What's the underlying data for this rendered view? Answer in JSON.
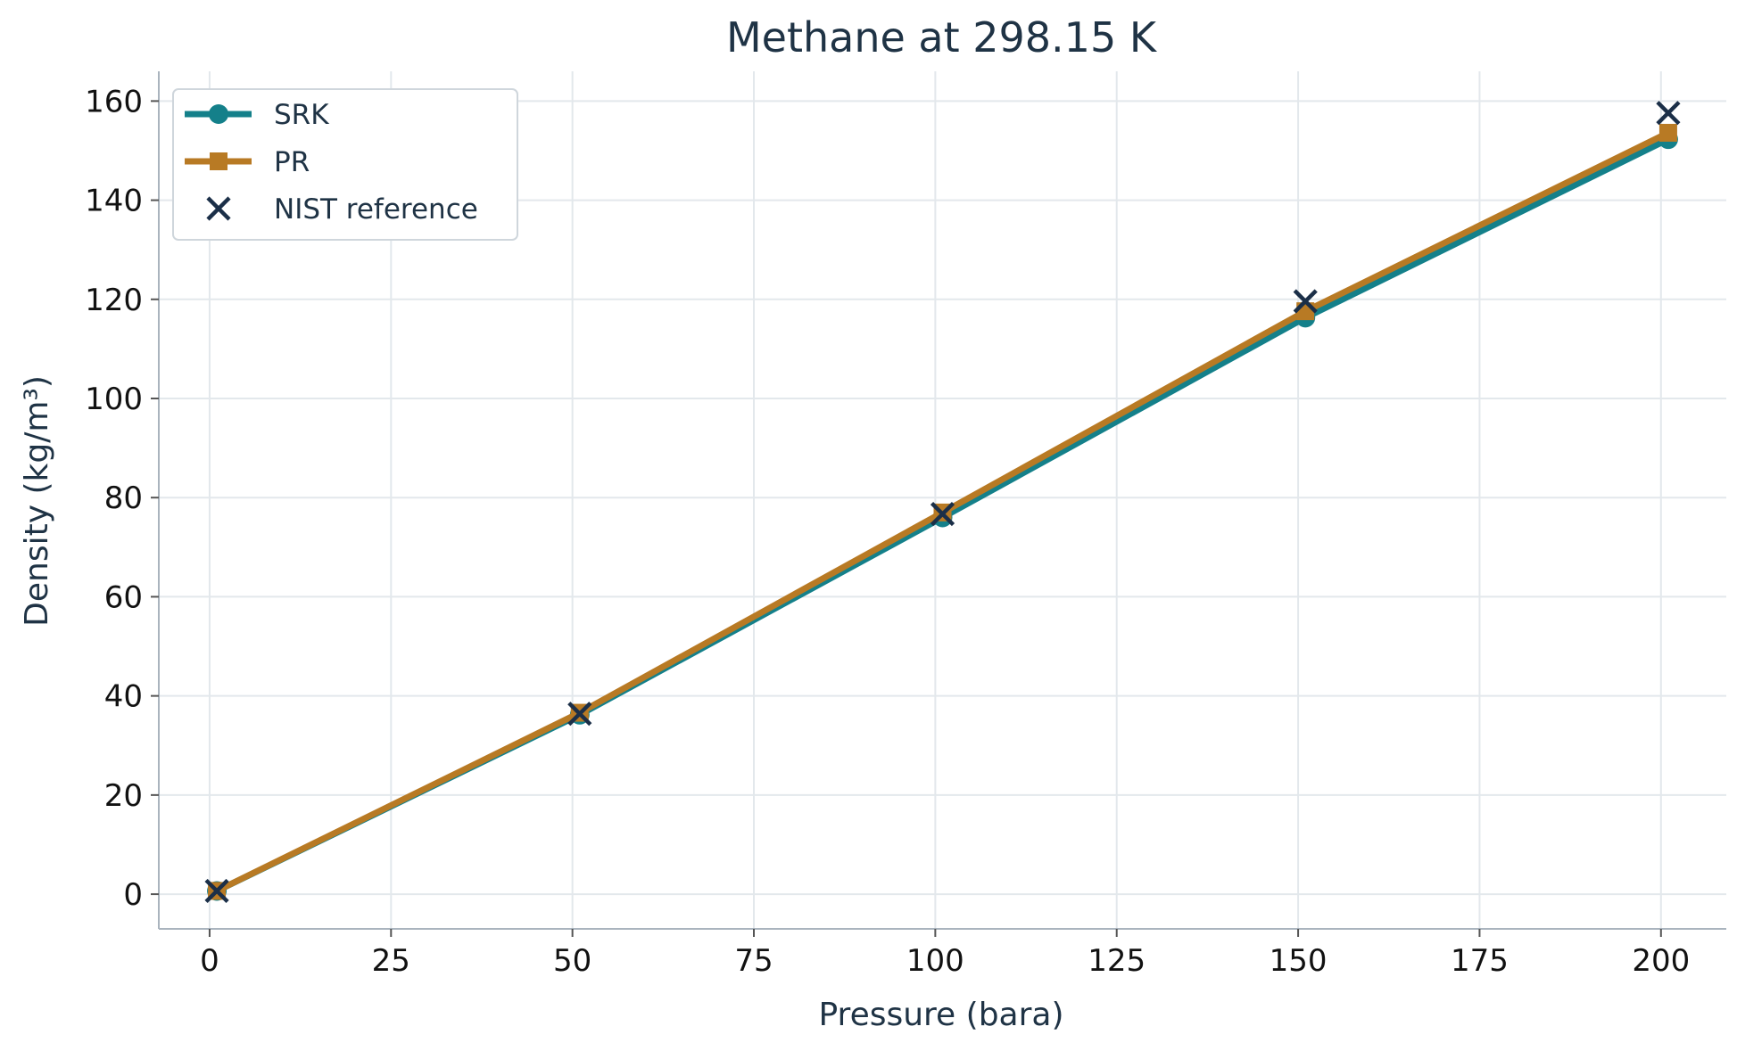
{
  "chart_data": {
    "type": "line",
    "title": "Methane at 298.15 K",
    "xlabel": "Pressure (bara)",
    "ylabel": "Density (kg/m³)",
    "xlim": [
      -7,
      209
    ],
    "ylim": [
      -7,
      166
    ],
    "xticks": [
      0,
      25,
      50,
      75,
      100,
      125,
      150,
      175,
      200
    ],
    "yticks": [
      0,
      20,
      40,
      60,
      80,
      100,
      120,
      140,
      160
    ],
    "grid": true,
    "legend_position": "top-left",
    "series": [
      {
        "name": "SRK",
        "marker": "circle",
        "color": "#14808a",
        "x": [
          1,
          51,
          101,
          151,
          201
        ],
        "y": [
          0.65,
          36.2,
          76.0,
          116.3,
          152.3
        ]
      },
      {
        "name": "PR",
        "marker": "square",
        "color": "#b87a24",
        "x": [
          1,
          51,
          101,
          151,
          201
        ],
        "y": [
          0.66,
          36.6,
          77.0,
          117.6,
          153.6
        ]
      },
      {
        "name": "NIST reference",
        "marker": "x",
        "color": "#1b2f48",
        "x": [
          1,
          51,
          101,
          151,
          201
        ],
        "y": [
          0.65,
          36.4,
          76.7,
          119.6,
          157.6
        ]
      }
    ]
  }
}
